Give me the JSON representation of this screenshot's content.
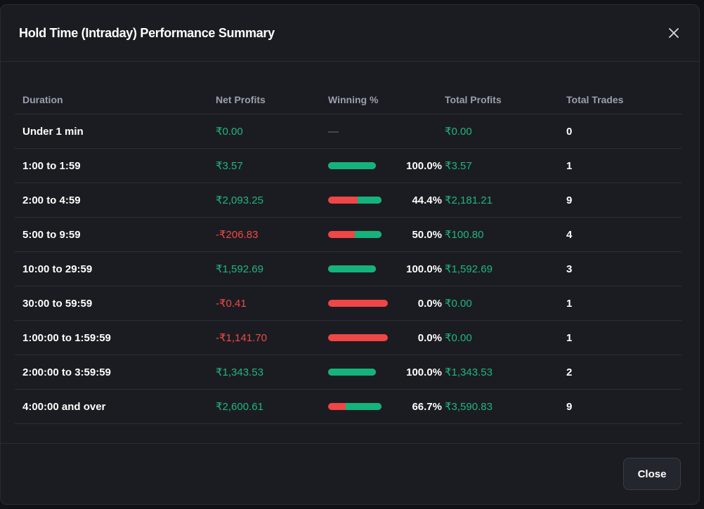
{
  "modal": {
    "title": "Hold Time (Intraday) Performance Summary",
    "close_label": "Close"
  },
  "table": {
    "headers": [
      "Duration",
      "Net Profits",
      "Winning %",
      "Total Profits",
      "Total Trades"
    ],
    "rows": [
      {
        "duration": "Under 1 min",
        "net_profits": "₹0.00",
        "net_sign": "positive",
        "winning": null,
        "winning_pct": "",
        "total_profits": "₹0.00",
        "total_trades": "0"
      },
      {
        "duration": "1:00 to 1:59",
        "net_profits": "₹3.57",
        "net_sign": "positive",
        "winning": 1.0,
        "winning_pct": "100.0%",
        "total_profits": "₹3.57",
        "total_trades": "1"
      },
      {
        "duration": "2:00 to 4:59",
        "net_profits": "₹2,093.25",
        "net_sign": "positive",
        "winning": 0.444,
        "winning_pct": "44.4%",
        "total_profits": "₹2,181.21",
        "total_trades": "9"
      },
      {
        "duration": "5:00 to 9:59",
        "net_profits": "-₹206.83",
        "net_sign": "negative",
        "winning": 0.5,
        "winning_pct": "50.0%",
        "total_profits": "₹100.80",
        "total_trades": "4"
      },
      {
        "duration": "10:00 to 29:59",
        "net_profits": "₹1,592.69",
        "net_sign": "positive",
        "winning": 1.0,
        "winning_pct": "100.0%",
        "total_profits": "₹1,592.69",
        "total_trades": "3"
      },
      {
        "duration": "30:00 to 59:59",
        "net_profits": "-₹0.41",
        "net_sign": "negative",
        "winning": 0.0,
        "winning_pct": "0.0%",
        "total_profits": "₹0.00",
        "total_trades": "1"
      },
      {
        "duration": "1:00:00 to 1:59:59",
        "net_profits": "-₹1,141.70",
        "net_sign": "negative",
        "winning": 0.0,
        "winning_pct": "0.0%",
        "total_profits": "₹0.00",
        "total_trades": "1"
      },
      {
        "duration": "2:00:00 to 3:59:59",
        "net_profits": "₹1,343.53",
        "net_sign": "positive",
        "winning": 1.0,
        "winning_pct": "100.0%",
        "total_profits": "₹1,343.53",
        "total_trades": "2"
      },
      {
        "duration": "4:00:00 and over",
        "net_profits": "₹2,600.61",
        "net_sign": "positive",
        "winning": 0.667,
        "winning_pct": "66.7%",
        "total_profits": "₹3,590.83",
        "total_trades": "9"
      }
    ]
  },
  "colors": {
    "positive": "#1fb67f",
    "negative": "#ef4a4a",
    "background": "#1b1c21"
  },
  "icons": {
    "close": "close-icon"
  }
}
